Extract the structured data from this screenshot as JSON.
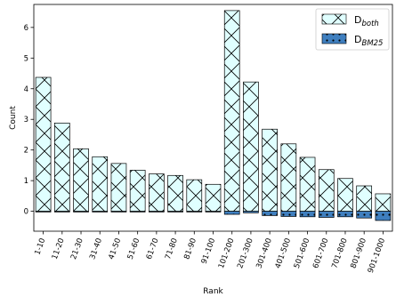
{
  "chart_data": {
    "type": "bar",
    "xlabel": "Rank",
    "ylabel": "Count",
    "ylim": [
      -0.65,
      6.75
    ],
    "yticks": [
      0,
      1,
      2,
      3,
      4,
      5,
      6
    ],
    "categories": [
      "1-10",
      "11-20",
      "21-30",
      "31-40",
      "41-50",
      "51-60",
      "61-70",
      "71-80",
      "81-90",
      "91-100",
      "101-200",
      "201-300",
      "301-400",
      "401-500",
      "501-600",
      "601-700",
      "701-800",
      "801-900",
      "901-1000"
    ],
    "series": [
      {
        "name": "D_both",
        "legend_main": "D",
        "legend_sub": "both",
        "color": "#e0ffff",
        "hatch": "x",
        "values": [
          4.37,
          2.88,
          2.04,
          1.78,
          1.56,
          1.34,
          1.22,
          1.17,
          1.03,
          0.88,
          6.55,
          4.22,
          2.68,
          2.2,
          1.76,
          1.36,
          1.07,
          0.83,
          0.57
        ]
      },
      {
        "name": "D_BM25",
        "legend_main": "D",
        "legend_sub": "BM25",
        "color": "#3f7fbf",
        "hatch": ".",
        "values": [
          0.0,
          0.0,
          0.0,
          -0.01,
          -0.01,
          -0.02,
          -0.01,
          -0.01,
          -0.01,
          -0.02,
          -0.1,
          -0.05,
          -0.14,
          -0.17,
          -0.18,
          -0.2,
          -0.18,
          -0.22,
          -0.3
        ]
      }
    ],
    "legend_position": "top-right",
    "grid": false
  }
}
